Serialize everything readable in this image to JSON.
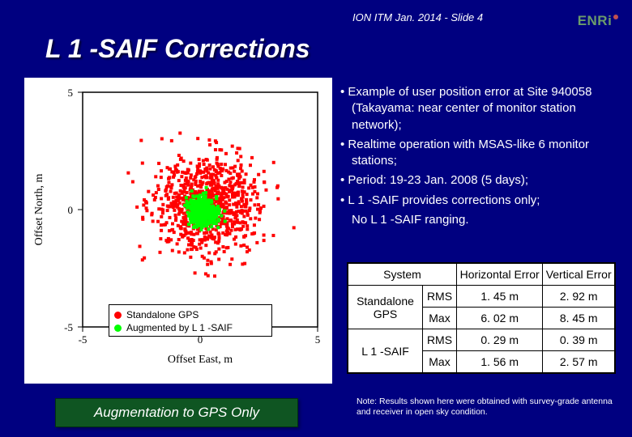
{
  "header_note": "ION ITM Jan. 2014 - Slide 4",
  "logo_text": "ENRi",
  "title": "L 1 -SAIF Corrections",
  "bullets": [
    "Example of user position error at Site 940058 (Takayama: near center of monitor station network);",
    "Realtime operation with MSAS-like 6 monitor stations;",
    "Period: 19-23 Jan. 2008 (5 days);",
    "L 1 -SAIF provides corrections only;"
  ],
  "bullet_sub": "No L 1 -SAIF ranging.",
  "table": {
    "headers": [
      "System",
      "Horizontal Error",
      "Vertical Error"
    ],
    "rows": [
      {
        "system": "Standalone GPS",
        "sub": "RMS",
        "h": "1. 45 m",
        "v": "2. 92 m"
      },
      {
        "sub": "Max",
        "h": "6. 02 m",
        "v": "8. 45 m"
      },
      {
        "system": "L 1 -SAIF",
        "sub": "RMS",
        "h": "0. 29 m",
        "v": "0. 39 m"
      },
      {
        "sub": "Max",
        "h": "1. 56 m",
        "v": "2. 57 m"
      }
    ]
  },
  "footnote": "Note: Results shown here were obtained with survey-grade antenna and receiver in open sky condition.",
  "caption": "Augmentation to GPS Only",
  "chart": {
    "type": "scatter",
    "xlabel": "Offset East, m",
    "ylabel": "Offset North, m",
    "xlim": [
      -5,
      5
    ],
    "ylim": [
      -5,
      5
    ],
    "tick_step": 5,
    "label_fontsize": 14,
    "tick_fontsize": 13,
    "axis_color": "#000000",
    "background_color": "#ffffff",
    "series": [
      {
        "name": "Standalone GPS",
        "color": "#ff0000",
        "marker": "square",
        "marker_size": 4,
        "cluster": {
          "cx": 0.3,
          "cy": 0.2,
          "spread_x": 2.2,
          "spread_y": 2.0,
          "n": 900
        }
      },
      {
        "name": "Augmented by L 1 -SAIF",
        "color": "#00ff00",
        "marker": "square",
        "marker_size": 4,
        "cluster": {
          "cx": 0.1,
          "cy": -0.1,
          "spread_x": 0.6,
          "spread_y": 0.6,
          "n": 500
        }
      }
    ],
    "legend_items": [
      {
        "color": "#ff0000",
        "label": "Standalone GPS"
      },
      {
        "color": "#00ff00",
        "label": "Augmented by L 1 -SAIF"
      }
    ]
  }
}
